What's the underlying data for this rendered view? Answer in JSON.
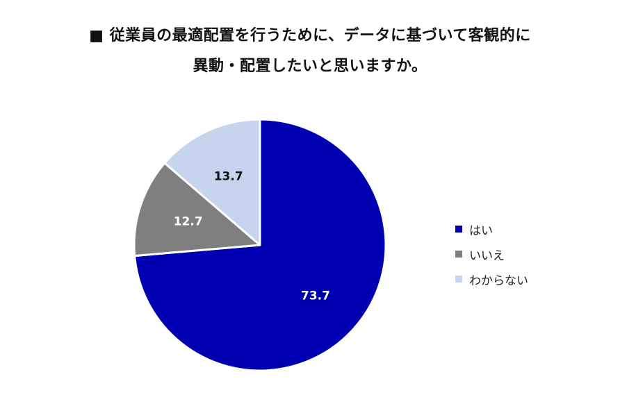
{
  "chart_data": {
    "type": "pie",
    "title": "■従業員の最適配置を行うために、データに基づいて客観的に異動・配置したいと思いますか。",
    "title_lines": [
      "■ 従業員の最適配置を行うために、データに基づいて客観的に",
      "異動・配置したいと思いますか。"
    ],
    "categories": [
      "はい",
      "いいえ",
      "わからない"
    ],
    "values": [
      73.7,
      12.7,
      13.7
    ],
    "labels": [
      "73.7",
      "12.7",
      "13.7"
    ],
    "colors": [
      "#0000b3",
      "#7f7f7f",
      "#c6d4ee"
    ],
    "label_colors": [
      "#ffffff",
      "#ffffff",
      "#111111"
    ],
    "start_angle_deg": 0,
    "direction": "clockwise",
    "legend_position": "right"
  }
}
